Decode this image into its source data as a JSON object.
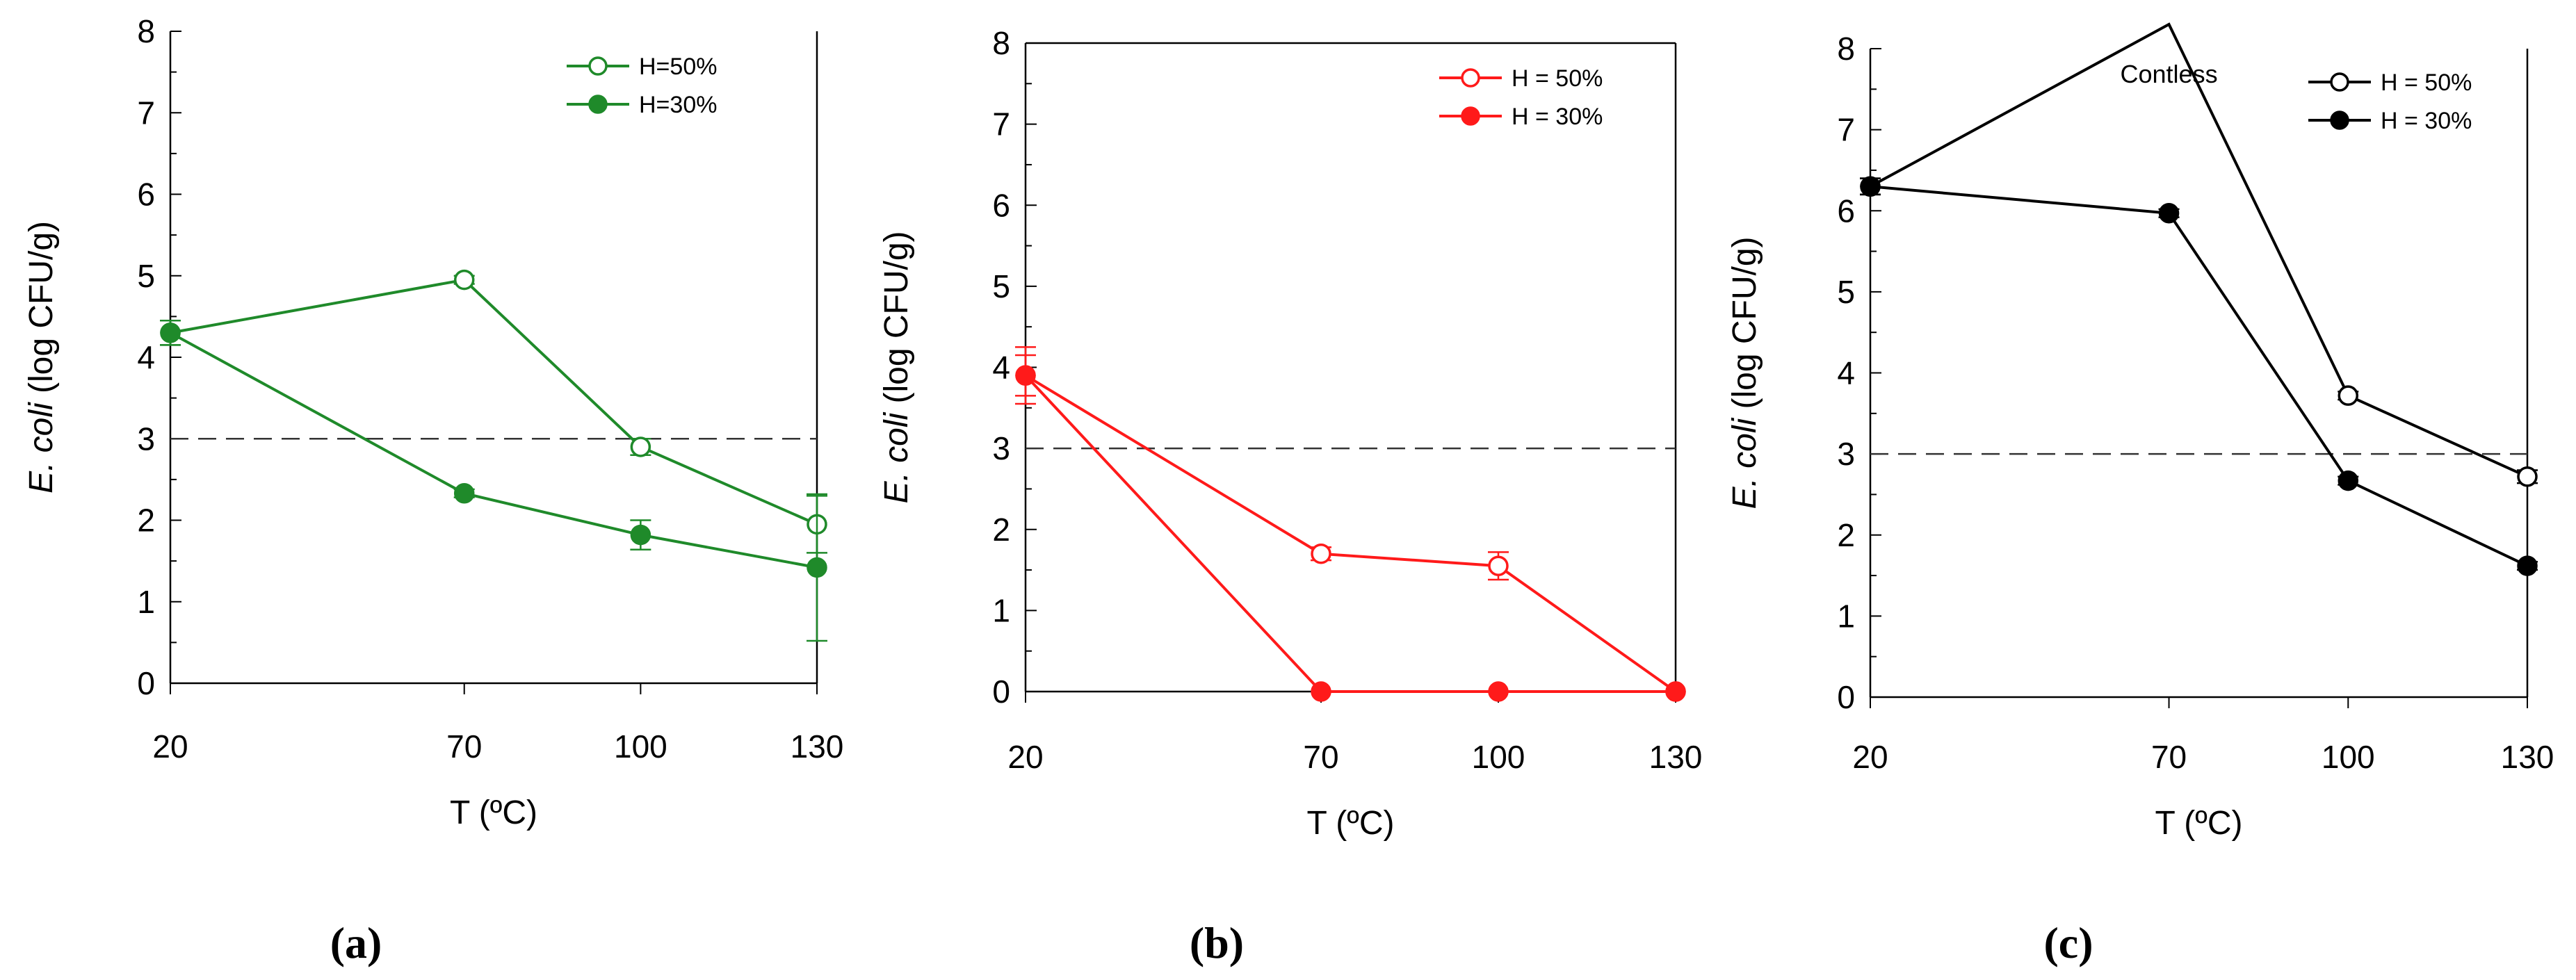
{
  "chart_data": [
    {
      "type": "line",
      "panel_label": "(a)",
      "color": "#1f8a2a",
      "xlabel": "T (ºC)",
      "ylabel_italic": "E. coli",
      "ylabel_rest": " (log CFU/g)",
      "x": [
        20,
        70,
        100,
        130
      ],
      "x_tick_labels": [
        "20",
        "70",
        "100",
        "130"
      ],
      "ylim": [
        0,
        8
      ],
      "y_tick_labels": [
        "0",
        "1",
        "2",
        "3",
        "4",
        "5",
        "6",
        "7",
        "8"
      ],
      "reference_line": 3,
      "legend_position": "top-right",
      "series": [
        {
          "name": "H=50%",
          "marker": "open-circle",
          "values": [
            4.3,
            4.95,
            2.9,
            1.95
          ],
          "errors": [
            0.15,
            0.05,
            0.1,
            0.35
          ]
        },
        {
          "name": "H=30%",
          "marker": "filled-circle",
          "values": [
            4.3,
            2.33,
            1.82,
            1.42
          ],
          "errors": [
            0.15,
            0.05,
            0.18,
            0.9
          ]
        }
      ]
    },
    {
      "type": "line",
      "panel_label": "(b)",
      "color": "#ff1a1a",
      "xlabel": "T (ºC)",
      "ylabel_italic": "E. coli",
      "ylabel_rest": " (log CFU/g)",
      "x": [
        20,
        70,
        100,
        130
      ],
      "x_tick_labels": [
        "20",
        "70",
        "100",
        "130"
      ],
      "ylim": [
        0,
        8
      ],
      "y_tick_labels": [
        "0",
        "1",
        "2",
        "3",
        "4",
        "5",
        "6",
        "7",
        "8"
      ],
      "reference_line": 3,
      "legend_position": "top-right",
      "series": [
        {
          "name": "H = 50%",
          "marker": "open-circle",
          "values": [
            3.9,
            1.7,
            1.55,
            0
          ],
          "errors": [
            0.35,
            0.08,
            0.17,
            0
          ]
        },
        {
          "name": "H = 30%",
          "marker": "filled-circle",
          "values": [
            3.9,
            0,
            0,
            0
          ],
          "errors": [
            0.25,
            0,
            0,
            0
          ]
        }
      ]
    },
    {
      "type": "line",
      "panel_label": "(c)",
      "color": "#000000",
      "xlabel": "T (ºC)",
      "ylabel_italic": "E. coli",
      "ylabel_rest": " (log CFU/g)",
      "x": [
        20,
        70,
        100,
        130
      ],
      "x_tick_labels": [
        "20",
        "70",
        "100",
        "130"
      ],
      "ylim": [
        0,
        8
      ],
      "y_tick_labels": [
        "0",
        "1",
        "2",
        "3",
        "4",
        "5",
        "6",
        "7",
        "8"
      ],
      "reference_line": 3,
      "legend_position": "top-right",
      "annotation": {
        "text": "Contless",
        "x": 70,
        "y": 7.7
      },
      "series": [
        {
          "name": "H = 50%",
          "marker": "open-circle",
          "values": [
            6.3,
            8.3,
            3.72,
            2.72
          ],
          "errors": [
            0.1,
            0,
            0.05,
            0.08
          ]
        },
        {
          "name": "H = 30%",
          "marker": "filled-circle",
          "values": [
            6.3,
            5.97,
            2.67,
            1.62
          ],
          "errors": [
            0.1,
            0.05,
            0.05,
            0.05
          ]
        }
      ]
    }
  ]
}
